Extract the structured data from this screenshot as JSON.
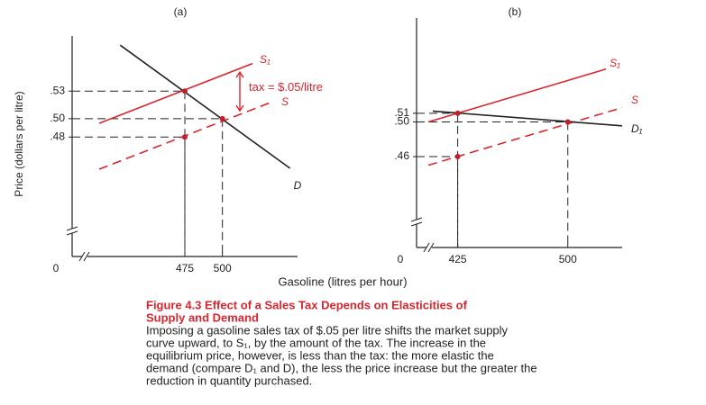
{
  "figure": {
    "y_label": "Price (dollars per litre)",
    "x_label": "Gasoline (litres per hour)",
    "caption_title": [
      "Figure 4.3   Effect of a Sales Tax Depends on Elasticities of",
      "Supply and Demand"
    ],
    "caption_body": [
      "Imposing a gasoline sales tax of $.05 per litre shifts the market supply",
      "curve upward, to S₁, by the amount of the tax. The increase in the",
      "equilibrium price, however, is less than the tax: the more elastic the",
      "demand (compare D₁ and D), the less the price increase but the greater the",
      "reduction in quantity purchased."
    ]
  },
  "chart_data": [
    {
      "type": "line",
      "panel_label": "(a)",
      "origin_label": "0",
      "xlim": [
        400,
        550
      ],
      "ylim": [
        0.35,
        0.59
      ],
      "xticks": [
        475,
        500
      ],
      "yticks": [
        {
          "value": 0.53,
          "label": ".53"
        },
        {
          "value": 0.5,
          "label": ".50"
        },
        {
          "value": 0.48,
          "label": ".48"
        }
      ],
      "series": [
        {
          "name": "S₁",
          "color": "#d8262f",
          "dashed": false,
          "x": [
            418,
            520
          ],
          "values": [
            0.495,
            0.56
          ]
        },
        {
          "name": "S",
          "color": "#d8262f",
          "dashed": true,
          "x": [
            418,
            532
          ],
          "values": [
            0.445,
            0.5176
          ]
        },
        {
          "name": "D",
          "color": "#222222",
          "dashed": false,
          "x": [
            432,
            545
          ],
          "values": [
            0.58,
            0.446
          ]
        }
      ],
      "points": {
        "color": "#c0202a",
        "x": [
          475,
          500,
          475
        ],
        "values": [
          0.53,
          0.5,
          0.48
        ]
      },
      "annotation": "tax = $.05/litre"
    },
    {
      "type": "line",
      "panel_label": "(b)",
      "origin_label": "0",
      "xlim": [
        397,
        537
      ],
      "ylim": [
        0.355,
        0.62
      ],
      "xticks": [
        425,
        500
      ],
      "yticks": [
        {
          "value": 0.51,
          "label": ".51"
        },
        {
          "value": 0.5,
          "label": ".50"
        },
        {
          "value": 0.46,
          "label": ".46"
        }
      ],
      "series": [
        {
          "name": "S₁",
          "color": "#d8262f",
          "dashed": false,
          "x": [
            405,
            526
          ],
          "values": [
            0.5,
            0.561
          ]
        },
        {
          "name": "S",
          "color": "#d8262f",
          "dashed": true,
          "x": [
            405,
            537
          ],
          "values": [
            0.45,
            0.5165
          ]
        },
        {
          "name": "D₁",
          "color": "#222222",
          "dashed": false,
          "x": [
            408,
            537
          ],
          "values": [
            0.5125,
            0.4955
          ]
        }
      ],
      "points": {
        "color": "#c0202a",
        "x": [
          425,
          500,
          425
        ],
        "values": [
          0.51,
          0.5,
          0.46
        ]
      }
    }
  ]
}
